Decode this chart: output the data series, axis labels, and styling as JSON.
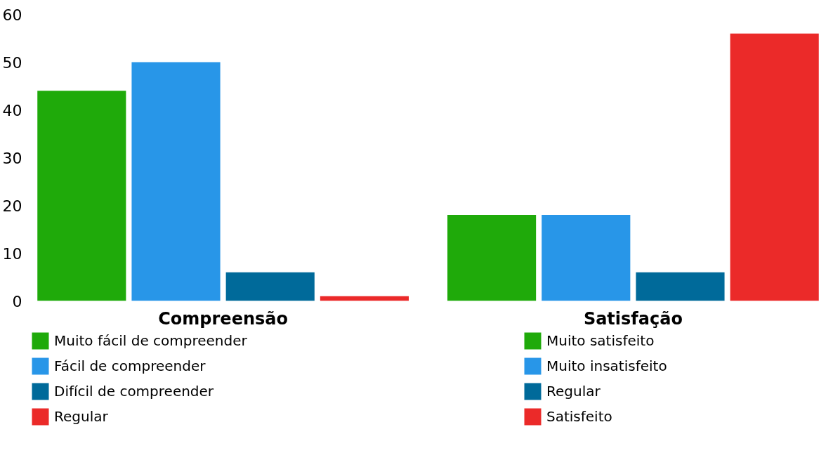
{
  "chart_data": {
    "type": "bar",
    "categories": [
      "Compreensão",
      "Satisfação"
    ],
    "ylim": [
      0,
      60
    ],
    "yticks": [
      0,
      10,
      20,
      30,
      40,
      50,
      60
    ],
    "grid": false,
    "legend": "bottom",
    "series": [
      {
        "name": "Muito fácil de compreender",
        "color": "#1faa0a",
        "values": [
          44,
          null
        ]
      },
      {
        "name": "Fácil de compreender",
        "color": "#2896e8",
        "values": [
          50,
          null
        ]
      },
      {
        "name": "Difícil de compreender",
        "color": "#006a9a",
        "values": [
          6,
          null
        ]
      },
      {
        "name": "Regular",
        "color": "#eb2a29",
        "values": [
          1,
          null
        ]
      },
      {
        "name": "Muito satisfeito",
        "color": "#1faa0a",
        "values": [
          null,
          18
        ]
      },
      {
        "name": "Muito insatisfeito",
        "color": "#2896e8",
        "values": [
          null,
          18
        ]
      },
      {
        "name": "Regular",
        "color": "#006a9a",
        "values": [
          null,
          6
        ]
      },
      {
        "name": "Satisfeito",
        "color": "#eb2a29",
        "values": [
          null,
          56
        ]
      }
    ]
  }
}
